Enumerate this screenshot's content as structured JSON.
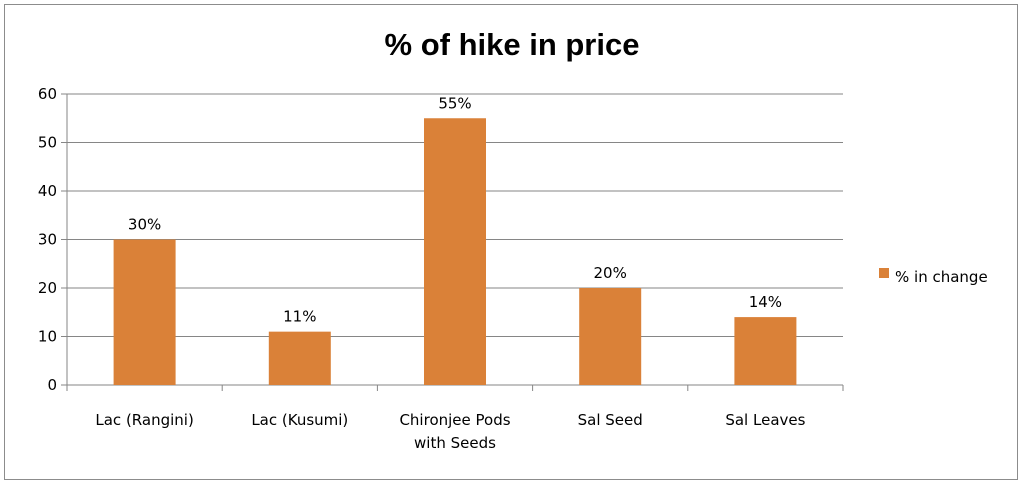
{
  "chart_data": {
    "type": "bar",
    "title": "% of hike in price",
    "categories": [
      [
        "Lac (Rangini)"
      ],
      [
        "Lac (Kusumi)"
      ],
      [
        "Chironjee Pods",
        "with Seeds"
      ],
      [
        "Sal Seed"
      ],
      [
        "Sal Leaves"
      ]
    ],
    "series": [
      {
        "name": "% in change",
        "values": [
          30,
          11,
          55,
          20,
          14
        ],
        "data_labels": [
          "30%",
          "11%",
          "55%",
          "20%",
          "14%"
        ],
        "color": "#DA8138"
      }
    ],
    "ylim": [
      0,
      60
    ],
    "yticks": [
      0,
      10,
      20,
      30,
      40,
      50,
      60
    ],
    "grid": true,
    "legend_position": "right"
  }
}
